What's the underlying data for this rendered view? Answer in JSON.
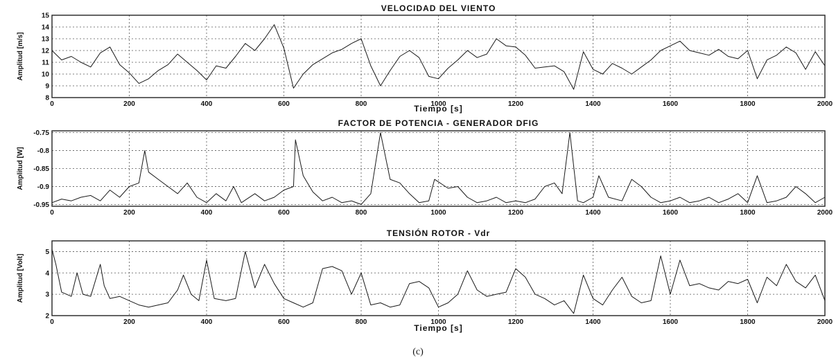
{
  "figure": {
    "caption": "(c)"
  },
  "chart_data": [
    {
      "type": "line",
      "title": "VELOCIDAD DEL VIENTO",
      "xlabel": "Tiempo [s]",
      "ylabel": "Amplitud [m/s]",
      "xlim": [
        0,
        2000
      ],
      "ylim": [
        8,
        15
      ],
      "xticks": [
        0,
        200,
        400,
        600,
        800,
        1000,
        1200,
        1400,
        1600,
        1800,
        2000
      ],
      "yticks": [
        8,
        9,
        10,
        11,
        12,
        13,
        14,
        15
      ],
      "grid": true,
      "series": [
        {
          "x": [
            0,
            25,
            50,
            75,
            100,
            125,
            150,
            175,
            200,
            225,
            250,
            275,
            300,
            325,
            350,
            375,
            400,
            425,
            450,
            475,
            500,
            525,
            550,
            575,
            600,
            625,
            650,
            675,
            700,
            725,
            750,
            775,
            800,
            825,
            850,
            875,
            900,
            925,
            950,
            975,
            1000,
            1025,
            1050,
            1075,
            1100,
            1125,
            1150,
            1175,
            1200,
            1225,
            1250,
            1275,
            1300,
            1325,
            1350,
            1375,
            1400,
            1425,
            1450,
            1475,
            1500,
            1525,
            1550,
            1575,
            1600,
            1625,
            1650,
            1675,
            1700,
            1725,
            1750,
            1775,
            1800,
            1825,
            1850,
            1875,
            1900,
            1925,
            1950,
            1975,
            2000
          ],
          "y": [
            12.0,
            11.2,
            11.5,
            11.0,
            10.6,
            11.8,
            12.3,
            10.8,
            10.1,
            9.2,
            9.6,
            10.3,
            10.8,
            11.7,
            11.0,
            10.3,
            9.5,
            10.7,
            10.5,
            11.5,
            12.6,
            12.0,
            13.0,
            14.2,
            12.2,
            8.8,
            10.0,
            10.8,
            11.3,
            11.8,
            12.1,
            12.6,
            13.0,
            10.7,
            9.0,
            10.3,
            11.5,
            12.0,
            11.4,
            9.8,
            9.6,
            10.5,
            11.2,
            12.0,
            11.4,
            11.7,
            13.0,
            12.4,
            12.3,
            11.6,
            10.5,
            10.6,
            10.7,
            10.2,
            8.7,
            11.9,
            10.4,
            10.0,
            10.9,
            10.5,
            10.0,
            10.6,
            11.2,
            12.0,
            12.4,
            12.8,
            12.0,
            11.8,
            11.6,
            12.1,
            11.5,
            11.3,
            12.0,
            9.6,
            11.2,
            11.6,
            12.3,
            11.8,
            10.4,
            11.9,
            10.7
          ]
        }
      ]
    },
    {
      "type": "line",
      "title": "FACTOR DE POTENCIA - GENERADOR DFIG",
      "xlabel": "",
      "ylabel": "Amplitud [W]",
      "xlim": [
        0,
        2000
      ],
      "ylim": [
        -0.955,
        -0.745
      ],
      "xticks": [
        0,
        200,
        400,
        600,
        800,
        1000,
        1200,
        1400,
        1600,
        1800,
        2000
      ],
      "yticks": [
        -0.95,
        -0.9,
        -0.85,
        -0.8,
        -0.75
      ],
      "grid": true,
      "series": [
        {
          "x": [
            0,
            25,
            50,
            75,
            100,
            125,
            150,
            175,
            200,
            225,
            240,
            250,
            275,
            300,
            325,
            350,
            375,
            400,
            425,
            450,
            470,
            490,
            525,
            550,
            575,
            600,
            625,
            630,
            650,
            675,
            700,
            725,
            750,
            775,
            800,
            825,
            850,
            875,
            900,
            925,
            950,
            975,
            990,
            1025,
            1050,
            1075,
            1100,
            1125,
            1150,
            1175,
            1200,
            1225,
            1250,
            1275,
            1300,
            1320,
            1340,
            1360,
            1375,
            1400,
            1415,
            1440,
            1475,
            1500,
            1525,
            1550,
            1575,
            1600,
            1625,
            1650,
            1675,
            1700,
            1725,
            1750,
            1775,
            1800,
            1825,
            1850,
            1875,
            1900,
            1925,
            1950,
            1975,
            2000
          ],
          "y": [
            -0.945,
            -0.935,
            -0.94,
            -0.93,
            -0.925,
            -0.94,
            -0.91,
            -0.93,
            -0.9,
            -0.89,
            -0.8,
            -0.86,
            -0.88,
            -0.9,
            -0.92,
            -0.89,
            -0.93,
            -0.945,
            -0.92,
            -0.94,
            -0.9,
            -0.945,
            -0.92,
            -0.94,
            -0.93,
            -0.91,
            -0.9,
            -0.77,
            -0.87,
            -0.915,
            -0.94,
            -0.93,
            -0.945,
            -0.94,
            -0.95,
            -0.92,
            -0.75,
            -0.88,
            -0.89,
            -0.92,
            -0.945,
            -0.94,
            -0.88,
            -0.905,
            -0.9,
            -0.93,
            -0.945,
            -0.94,
            -0.93,
            -0.945,
            -0.94,
            -0.945,
            -0.935,
            -0.9,
            -0.89,
            -0.92,
            -0.75,
            -0.94,
            -0.945,
            -0.93,
            -0.87,
            -0.93,
            -0.94,
            -0.88,
            -0.9,
            -0.93,
            -0.945,
            -0.94,
            -0.93,
            -0.945,
            -0.94,
            -0.93,
            -0.945,
            -0.935,
            -0.92,
            -0.945,
            -0.87,
            -0.945,
            -0.94,
            -0.93,
            -0.9,
            -0.92,
            -0.945,
            -0.93
          ]
        }
      ]
    },
    {
      "type": "line",
      "title": "TENSIÓN ROTOR - Vdr",
      "xlabel": "Tiempo [s]",
      "ylabel": "Amplitud [Volt]",
      "xlim": [
        0,
        2000
      ],
      "ylim": [
        2,
        5.5
      ],
      "xticks": [
        0,
        200,
        400,
        600,
        800,
        1000,
        1200,
        1400,
        1600,
        1800,
        2000
      ],
      "yticks": [
        2,
        3,
        4,
        5
      ],
      "grid": true,
      "series": [
        {
          "x": [
            0,
            10,
            25,
            50,
            65,
            80,
            100,
            125,
            135,
            150,
            175,
            200,
            225,
            250,
            275,
            300,
            325,
            340,
            360,
            380,
            400,
            420,
            450,
            475,
            500,
            525,
            550,
            575,
            600,
            625,
            650,
            675,
            700,
            725,
            750,
            775,
            800,
            825,
            850,
            875,
            900,
            925,
            950,
            975,
            1000,
            1025,
            1050,
            1075,
            1100,
            1125,
            1150,
            1175,
            1200,
            1225,
            1250,
            1275,
            1300,
            1325,
            1350,
            1375,
            1400,
            1425,
            1450,
            1475,
            1500,
            1525,
            1550,
            1575,
            1600,
            1625,
            1650,
            1675,
            1700,
            1725,
            1750,
            1775,
            1800,
            1825,
            1850,
            1875,
            1900,
            1925,
            1950,
            1975,
            2000
          ],
          "y": [
            5.1,
            4.4,
            3.1,
            2.9,
            4.0,
            3.0,
            2.9,
            4.4,
            3.4,
            2.8,
            2.9,
            2.7,
            2.5,
            2.4,
            2.5,
            2.6,
            3.2,
            3.9,
            3.0,
            2.7,
            4.6,
            2.8,
            2.7,
            2.8,
            5.0,
            3.3,
            4.4,
            3.5,
            2.8,
            2.6,
            2.4,
            2.6,
            4.2,
            4.3,
            4.1,
            3.0,
            4.0,
            2.5,
            2.6,
            2.4,
            2.5,
            3.5,
            3.6,
            3.3,
            2.4,
            2.6,
            3.0,
            4.1,
            3.2,
            2.9,
            3.0,
            3.1,
            4.2,
            3.8,
            3.0,
            2.8,
            2.5,
            2.7,
            2.1,
            3.9,
            2.8,
            2.5,
            3.2,
            3.8,
            2.9,
            2.6,
            2.7,
            4.8,
            3.0,
            4.6,
            3.4,
            3.5,
            3.3,
            3.2,
            3.6,
            3.5,
            3.7,
            2.6,
            3.8,
            3.4,
            4.4,
            3.6,
            3.3,
            3.9,
            2.7
          ]
        }
      ]
    }
  ]
}
